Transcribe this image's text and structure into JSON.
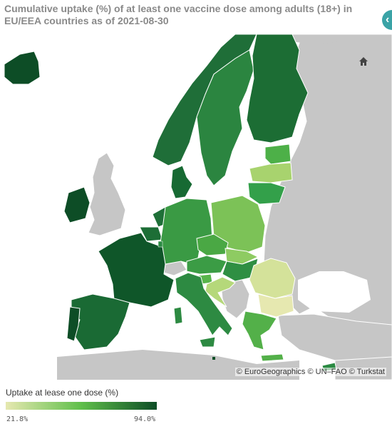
{
  "title": "Cumulative uptake (%) of at least one vaccine dose among adults (18+) in EU/EEA countries as of 2021-08-30",
  "attribution": "© EuroGeographics © UN–FAO © Turkstat",
  "legend": {
    "title": "Uptake at lease one dose (%)",
    "min": "21.8%",
    "max": "94.0%",
    "color_low": "#e6e8b0",
    "color_mid": "#5fbf4a",
    "color_high": "#0d4d26"
  },
  "colors": {
    "sea": "#ffffff",
    "non_eu_land": "#c6c6c6",
    "accent": "#3aa3a6"
  },
  "icons": {
    "home": "home-icon",
    "side_button": "sidebar-toggle-icon"
  }
}
